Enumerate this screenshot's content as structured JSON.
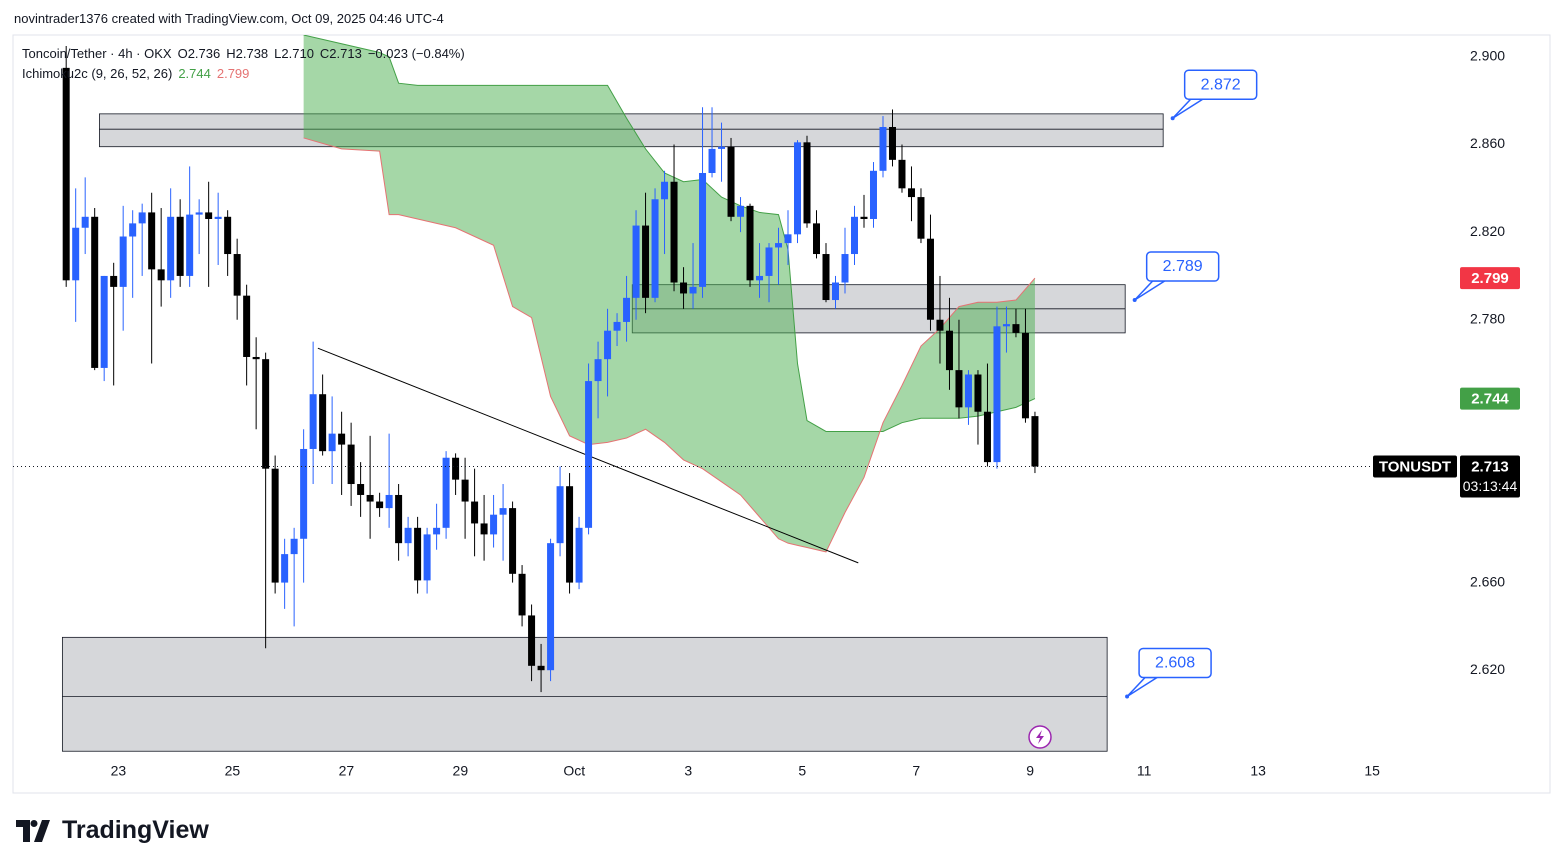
{
  "header": {
    "author_line": "novintrader1376 created with TradingView.com, Oct 09, 2025 04:46 UTC-4",
    "brand": "TradingView"
  },
  "chart_data": {
    "type": "candlestick",
    "symbol_legend": [
      "Toncoin/Tether · 4h · OKX",
      "O2.736",
      "H2.738",
      "L2.710",
      "C2.713",
      "−0.023 (−0.84%)"
    ],
    "up_color": "#2962ff",
    "down_color": "#000000",
    "open": [
      2.895,
      2.798,
      2.822,
      2.827,
      2.758,
      2.8,
      2.795,
      2.818,
      2.824,
      2.829,
      2.803,
      2.798,
      2.827,
      2.8,
      2.828,
      2.829,
      2.826,
      2.827,
      2.81,
      2.791,
      2.763,
      2.762,
      2.712,
      2.66,
      2.673,
      2.68,
      2.721,
      2.746,
      2.72,
      2.728,
      2.723,
      2.705,
      2.7,
      2.697,
      2.694,
      2.7,
      2.678,
      2.685,
      2.661,
      2.682,
      2.685,
      2.717,
      2.707,
      2.697,
      2.687,
      2.682,
      2.691,
      2.694,
      2.664,
      2.645,
      2.622,
      2.62,
      2.678,
      2.704,
      2.66,
      2.685,
      2.752,
      2.762,
      2.775,
      2.779,
      2.79,
      2.823,
      2.79,
      2.835,
      2.843,
      2.797,
      2.792,
      2.795,
      2.847,
      2.858,
      2.859,
      2.827,
      2.832,
      2.798,
      2.8,
      2.813,
      2.815,
      2.819,
      2.861,
      2.824,
      2.81,
      2.789,
      2.797,
      2.81,
      2.827,
      2.826,
      2.848,
      2.868,
      2.853,
      2.84,
      2.836,
      2.817,
      2.78,
      2.775,
      2.757,
      2.74,
      2.755,
      2.738,
      2.715,
      2.777,
      2.778,
      2.774,
      2.736
    ],
    "high": [
      2.905,
      2.84,
      2.845,
      2.831,
      2.8,
      2.806,
      2.832,
      2.83,
      2.833,
      2.838,
      2.831,
      2.84,
      2.835,
      2.85,
      2.835,
      2.843,
      2.838,
      2.83,
      2.817,
      2.796,
      2.772,
      2.765,
      2.718,
      2.68,
      2.685,
      2.73,
      2.77,
      2.755,
      2.745,
      2.738,
      2.733,
      2.715,
      2.727,
      2.701,
      2.728,
      2.705,
      2.69,
      2.69,
      2.685,
      2.696,
      2.72,
      2.719,
      2.717,
      2.712,
      2.7,
      2.7,
      2.705,
      2.697,
      2.668,
      2.65,
      2.632,
      2.68,
      2.713,
      2.71,
      2.69,
      2.76,
      2.77,
      2.785,
      2.783,
      2.8,
      2.83,
      2.838,
      2.84,
      2.848,
      2.86,
      2.804,
      2.815,
      2.877,
      2.877,
      2.87,
      2.863,
      2.836,
      2.833,
      2.815,
      2.815,
      2.822,
      2.83,
      2.862,
      2.864,
      2.83,
      2.815,
      2.8,
      2.822,
      2.832,
      2.837,
      2.852,
      2.873,
      2.876,
      2.86,
      2.85,
      2.84,
      2.828,
      2.8,
      2.79,
      2.78,
      2.757,
      2.757,
      2.76,
      2.786,
      2.786,
      2.785,
      2.785,
      2.738
    ],
    "low": [
      2.795,
      2.779,
      2.81,
      2.757,
      2.752,
      2.75,
      2.775,
      2.79,
      2.8,
      2.76,
      2.786,
      2.79,
      2.795,
      2.795,
      2.81,
      2.795,
      2.805,
      2.8,
      2.78,
      2.75,
      2.73,
      2.63,
      2.655,
      2.648,
      2.64,
      2.66,
      2.705,
      2.718,
      2.705,
      2.7,
      2.695,
      2.69,
      2.68,
      2.69,
      2.685,
      2.67,
      2.672,
      2.655,
      2.655,
      2.675,
      2.68,
      2.7,
      2.68,
      2.672,
      2.67,
      2.676,
      2.67,
      2.66,
      2.64,
      2.615,
      2.61,
      2.615,
      2.672,
      2.655,
      2.657,
      2.682,
      2.735,
      2.745,
      2.768,
      2.77,
      2.78,
      2.783,
      2.788,
      2.81,
      2.793,
      2.785,
      2.785,
      2.79,
      2.845,
      2.843,
      2.825,
      2.82,
      2.795,
      2.79,
      2.788,
      2.796,
      2.805,
      2.815,
      2.822,
      2.808,
      2.788,
      2.785,
      2.792,
      2.805,
      2.822,
      2.822,
      2.845,
      2.85,
      2.838,
      2.825,
      2.815,
      2.775,
      2.76,
      2.748,
      2.735,
      2.732,
      2.723,
      2.713,
      2.712,
      2.765,
      2.772,
      2.733,
      2.71
    ],
    "close": [
      2.798,
      2.822,
      2.827,
      2.758,
      2.8,
      2.795,
      2.818,
      2.824,
      2.829,
      2.803,
      2.798,
      2.827,
      2.8,
      2.828,
      2.829,
      2.826,
      2.827,
      2.81,
      2.791,
      2.763,
      2.762,
      2.712,
      2.66,
      2.673,
      2.68,
      2.721,
      2.746,
      2.72,
      2.728,
      2.723,
      2.705,
      2.7,
      2.697,
      2.694,
      2.7,
      2.678,
      2.685,
      2.661,
      2.682,
      2.685,
      2.717,
      2.707,
      2.697,
      2.687,
      2.682,
      2.691,
      2.694,
      2.664,
      2.645,
      2.622,
      2.62,
      2.678,
      2.704,
      2.66,
      2.685,
      2.752,
      2.762,
      2.775,
      2.779,
      2.79,
      2.823,
      2.79,
      2.835,
      2.843,
      2.797,
      2.792,
      2.795,
      2.847,
      2.858,
      2.859,
      2.827,
      2.832,
      2.798,
      2.8,
      2.813,
      2.815,
      2.819,
      2.861,
      2.824,
      2.81,
      2.789,
      2.797,
      2.81,
      2.827,
      2.826,
      2.848,
      2.868,
      2.853,
      2.84,
      2.836,
      2.817,
      2.78,
      2.775,
      2.757,
      2.74,
      2.755,
      2.738,
      2.715,
      2.777,
      2.778,
      2.774,
      2.735,
      2.713
    ],
    "xlim": [
      -5.6,
      145.7
    ],
    "xticks": [
      {
        "value": 5.5,
        "label": "23"
      },
      {
        "value": 17.5,
        "label": "25"
      },
      {
        "value": 29.5,
        "label": "27"
      },
      {
        "value": 41.5,
        "label": "29"
      },
      {
        "value": 53.5,
        "label": "Oct"
      },
      {
        "value": 65.5,
        "label": "3"
      },
      {
        "value": 77.5,
        "label": "5"
      },
      {
        "value": 89.5,
        "label": "7"
      },
      {
        "value": 101.5,
        "label": "9"
      },
      {
        "value": 113.5,
        "label": "11"
      },
      {
        "value": 125.5,
        "label": "13"
      },
      {
        "value": 137.5,
        "label": "15"
      }
    ],
    "ylim": [
      2.579,
      2.91
    ],
    "yticks": [
      {
        "value": 2.9,
        "label": "2.900"
      },
      {
        "value": 2.86,
        "label": "2.860"
      },
      {
        "value": 2.82,
        "label": "2.820"
      },
      {
        "value": 2.78,
        "label": "2.780"
      },
      {
        "value": 2.66,
        "label": "2.660"
      },
      {
        "value": 2.62,
        "label": "2.620"
      }
    ],
    "ichimoku": {
      "name": "Ichimoku2c (9, 26, 52, 26)",
      "fill": "rgba(76,175,80,0.5)",
      "x": [
        25,
        29,
        33,
        34,
        35,
        37,
        41,
        45,
        47,
        49,
        51,
        53,
        55,
        57,
        59,
        61,
        63,
        65,
        67,
        69,
        71,
        73,
        75,
        76,
        77,
        78,
        80,
        82,
        84,
        86,
        88,
        90,
        92,
        94,
        96,
        98,
        100,
        102
      ],
      "span_a": {
        "color": "#43a047",
        "values": [
          2.91,
          2.906,
          2.902,
          2.9,
          2.888,
          2.887,
          2.887,
          2.887,
          2.887,
          2.887,
          2.887,
          2.887,
          2.887,
          2.887,
          2.872,
          2.858,
          2.847,
          2.843,
          2.844,
          2.836,
          2.832,
          2.829,
          2.828,
          2.812,
          2.76,
          2.734,
          2.729,
          2.729,
          2.729,
          2.729,
          2.733,
          2.735,
          2.735,
          2.735,
          2.736,
          2.738,
          2.74,
          2.744
        ]
      },
      "span_b": {
        "color": "#e57373",
        "values": [
          2.863,
          2.858,
          2.857,
          2.828,
          2.828,
          2.826,
          2.822,
          2.814,
          2.786,
          2.781,
          2.745,
          2.727,
          2.723,
          2.724,
          2.726,
          2.73,
          2.724,
          2.716,
          2.712,
          2.706,
          2.7,
          2.69,
          2.68,
          2.678,
          2.677,
          2.676,
          2.674,
          2.692,
          2.708,
          2.733,
          2.75,
          2.768,
          2.776,
          2.786,
          2.788,
          2.788,
          2.789,
          2.799
        ]
      }
    },
    "trend_line": {
      "x": [
        26.5,
        83.4
      ],
      "values": [
        2.767,
        2.669
      ],
      "color": "#000000"
    },
    "zones": [
      {
        "x": [
          3.5,
          115.5
        ],
        "top": 2.874,
        "bottom": 2.859,
        "line": 2.867
      },
      {
        "x": [
          59.6,
          111.5
        ],
        "top": 2.796,
        "bottom": 2.774,
        "line": 2.785
      },
      {
        "x": [
          -0.4,
          109.6
        ],
        "top": 2.635,
        "bottom": 2.583,
        "line": 2.608
      }
    ],
    "callouts": [
      {
        "x": 116.5,
        "value": 2.872
      },
      {
        "x": 112.5,
        "value": 2.789
      },
      {
        "x": 111.7,
        "value": 2.608
      }
    ],
    "symbol": "TONUSDT",
    "countdown": "03:13:44"
  }
}
